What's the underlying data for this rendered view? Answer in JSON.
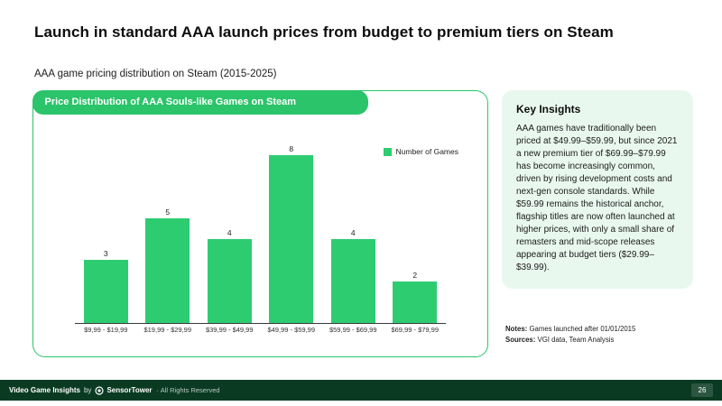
{
  "colors": {
    "accent": "#2ecc71",
    "ribbon": "#2bc46a",
    "panel_bg": "#e9f8ef",
    "footer_bg": "#0a3b22"
  },
  "slide": {
    "title": "Launch in standard AAA launch prices from budget to premium tiers on Steam",
    "subtitle": "AAA game pricing distribution on Steam (2015-2025)",
    "page_number": "26"
  },
  "chart": {
    "header": "Price Distribution of AAA Souls-like Games on Steam",
    "legend_label": "Number of Games"
  },
  "chart_data": {
    "type": "bar",
    "title": "Price Distribution of AAA Souls-like Games on Steam",
    "categories": [
      "$9,99 - $19,99",
      "$19,99 - $29,99",
      "$39,99 - $49,99",
      "$49,99 - $59,99",
      "$59,99 - $69,99",
      "$69,99 - $79,99"
    ],
    "values": [
      3,
      5,
      4,
      8,
      4,
      2
    ],
    "series_name": "Number of Games",
    "xlabel": "",
    "ylabel": "",
    "ylim": [
      0,
      8
    ],
    "grid": false,
    "legend_position": "top-right",
    "bar_color": "#2ecc71",
    "value_labels": true
  },
  "insights": {
    "title": "Key Insights",
    "body": "AAA games have traditionally been priced at $49.99–$59.99, but since 2021 a new premium tier of $69.99–$79.99 has become increasingly common, driven by rising development costs and next-gen console standards. While $59.99 remains the historical anchor, flagship titles are now often launched at higher prices, with only a small share of remasters and mid-scope releases appearing at budget tiers ($29.99–$39.99)."
  },
  "notes": {
    "label": "Notes:",
    "text": "Games launched after 01/01/2015"
  },
  "sources": {
    "label": "Sources:",
    "text": "VGI data, Team Analysis"
  },
  "footer": {
    "brand": "Video Game Insights",
    "by": "by",
    "logo_name": "SensorTower",
    "rights": "· All Rights Reserved"
  }
}
